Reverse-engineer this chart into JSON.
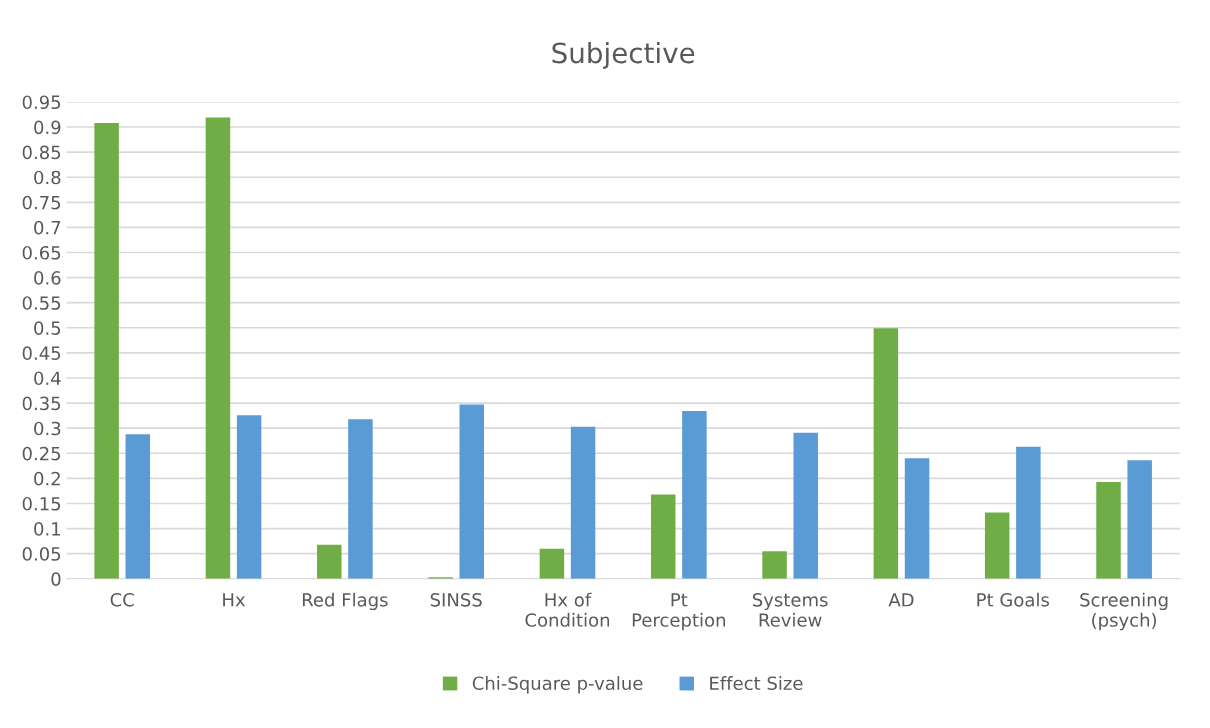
{
  "chart_data": {
    "type": "bar",
    "title": "Subjective",
    "categories": [
      "CC",
      "Hx",
      "Red Flags",
      "SINSS",
      "Hx of\nCondition",
      "Pt\nPerception",
      "Systems\nReview",
      "AD",
      "Pt Goals",
      "Screening\n(psych)"
    ],
    "series": [
      {
        "name": "Chi-Square p-value",
        "color": "#70ad47",
        "values": [
          0.908,
          0.919,
          0.068,
          0.003,
          0.06,
          0.168,
          0.055,
          0.499,
          0.132,
          0.193
        ]
      },
      {
        "name": "Effect Size",
        "color": "#5b9bd5",
        "values": [
          0.288,
          0.326,
          0.318,
          0.347,
          0.303,
          0.334,
          0.291,
          0.24,
          0.263,
          0.236
        ]
      }
    ],
    "ylim": [
      0,
      0.95
    ],
    "yticks": [
      0,
      0.05,
      0.1,
      0.15,
      0.2,
      0.25,
      0.3,
      0.35,
      0.4,
      0.45,
      0.5,
      0.55,
      0.6,
      0.65,
      0.7,
      0.75,
      0.8,
      0.85,
      0.9,
      0.95
    ],
    "grid": "y",
    "legend": "bottom"
  }
}
